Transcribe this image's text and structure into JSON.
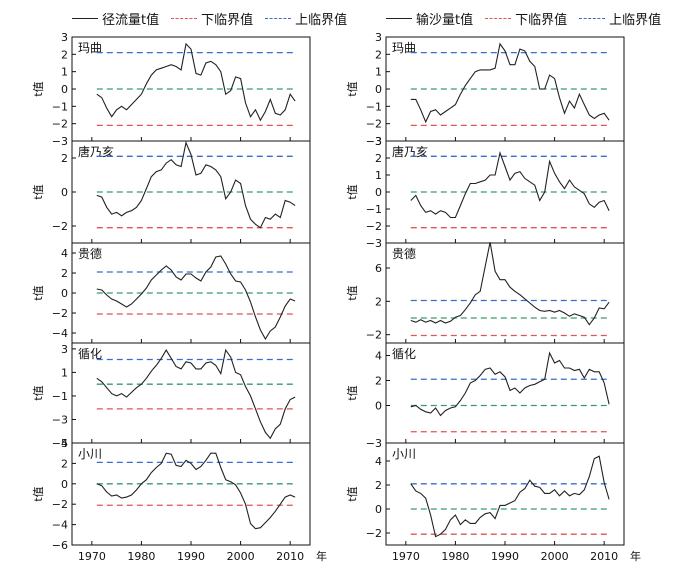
{
  "legend_left": [
    {
      "label": "径流量t值",
      "color": "#222222",
      "style": "solid"
    },
    {
      "label": "下临界值",
      "color": "#e05555",
      "style": "dashed"
    },
    {
      "label": "上临界值",
      "color": "#3a6fc9",
      "style": "dashed"
    }
  ],
  "legend_right": [
    {
      "label": "输沙量t值",
      "color": "#222222",
      "style": "solid"
    },
    {
      "label": "下临界值",
      "color": "#e05555",
      "style": "dashed"
    },
    {
      "label": "上临界值",
      "color": "#3a6fc9",
      "style": "dashed"
    }
  ],
  "ylabel": "t值",
  "xunit": "年",
  "colors": {
    "series": "#222222",
    "lower": "#e05555",
    "upper": "#3a6fc9",
    "zero": "#3a9a6a"
  },
  "chart_data": [
    {
      "type": "line",
      "column": "runoff",
      "station": "玛曲",
      "ylim": [
        -3,
        3
      ],
      "yticks": [
        -3,
        -2,
        -1,
        0,
        1,
        2,
        3
      ],
      "critical": {
        "lower": -2.1,
        "upper": 2.1
      },
      "x": [
        1971,
        1972,
        1973,
        1974,
        1975,
        1976,
        1977,
        1978,
        1979,
        1980,
        1981,
        1982,
        1983,
        1984,
        1985,
        1986,
        1987,
        1988,
        1989,
        1990,
        1991,
        1992,
        1993,
        1994,
        1995,
        1996,
        1997,
        1998,
        1999,
        2000,
        2001,
        2002,
        2003,
        2004,
        2005,
        2006,
        2007,
        2008,
        2009,
        2010,
        2011
      ],
      "values": [
        -0.3,
        -0.5,
        -1.1,
        -1.6,
        -1.2,
        -1.0,
        -1.2,
        -0.9,
        -0.6,
        -0.3,
        0.3,
        0.8,
        1.1,
        1.2,
        1.3,
        1.4,
        1.3,
        1.1,
        2.6,
        2.3,
        0.9,
        0.8,
        1.5,
        1.6,
        1.4,
        1.0,
        -0.3,
        -0.1,
        0.7,
        0.6,
        -0.8,
        -1.6,
        -1.2,
        -1.8,
        -1.3,
        -0.6,
        -1.4,
        -1.5,
        -1.2,
        -0.3,
        -0.7
      ]
    },
    {
      "type": "line",
      "column": "runoff",
      "station": "唐乃亥",
      "ylim": [
        -3,
        3
      ],
      "yticks": [
        -2,
        0,
        2
      ],
      "critical": {
        "lower": -2.1,
        "upper": 2.1
      },
      "x": [
        1971,
        1972,
        1973,
        1974,
        1975,
        1976,
        1977,
        1978,
        1979,
        1980,
        1981,
        1982,
        1983,
        1984,
        1985,
        1986,
        1987,
        1988,
        1989,
        1990,
        1991,
        1992,
        1993,
        1994,
        1995,
        1996,
        1997,
        1998,
        1999,
        2000,
        2001,
        2002,
        2003,
        2004,
        2005,
        2006,
        2007,
        2008,
        2009,
        2010,
        2011
      ],
      "values": [
        -0.2,
        -0.3,
        -0.9,
        -1.3,
        -1.2,
        -1.4,
        -1.2,
        -1.1,
        -0.9,
        -0.5,
        0.2,
        0.9,
        1.2,
        1.3,
        1.7,
        1.9,
        1.6,
        1.5,
        2.9,
        2.2,
        1.0,
        1.1,
        1.6,
        1.5,
        1.3,
        0.9,
        -0.4,
        0.0,
        0.7,
        0.5,
        -0.8,
        -1.6,
        -1.9,
        -2.1,
        -1.5,
        -1.6,
        -1.3,
        -1.5,
        -0.5,
        -0.6,
        -0.8
      ]
    },
    {
      "type": "line",
      "column": "runoff",
      "station": "贵德",
      "ylim": [
        -5,
        5
      ],
      "yticks": [
        -4,
        -2,
        0,
        2,
        4
      ],
      "critical": {
        "lower": -2.1,
        "upper": 2.1
      },
      "x": [
        1971,
        1972,
        1973,
        1974,
        1975,
        1976,
        1977,
        1978,
        1979,
        1980,
        1981,
        1982,
        1983,
        1984,
        1985,
        1986,
        1987,
        1988,
        1989,
        1990,
        1991,
        1992,
        1993,
        1994,
        1995,
        1996,
        1997,
        1998,
        1999,
        2000,
        2001,
        2002,
        2003,
        2004,
        2005,
        2006,
        2007,
        2008,
        2009,
        2010,
        2011
      ],
      "values": [
        0.4,
        0.3,
        -0.2,
        -0.6,
        -0.8,
        -1.1,
        -1.4,
        -1.1,
        -0.6,
        -0.1,
        0.5,
        1.3,
        1.8,
        2.3,
        2.7,
        2.3,
        1.6,
        1.3,
        1.9,
        1.9,
        1.5,
        1.2,
        2.1,
        2.6,
        3.6,
        3.7,
        2.9,
        1.9,
        1.2,
        1.1,
        0.3,
        -0.9,
        -2.4,
        -3.7,
        -4.6,
        -3.8,
        -3.4,
        -2.4,
        -1.3,
        -0.6,
        -0.8
      ]
    },
    {
      "type": "line",
      "column": "runoff",
      "station": "循化",
      "ylim": [
        -5,
        3.5
      ],
      "yticks": [
        -5,
        -3,
        -1,
        1,
        3
      ],
      "critical": {
        "lower": -2.1,
        "upper": 2.1
      },
      "x": [
        1971,
        1972,
        1973,
        1974,
        1975,
        1976,
        1977,
        1978,
        1979,
        1980,
        1981,
        1982,
        1983,
        1984,
        1985,
        1986,
        1987,
        1988,
        1989,
        1990,
        1991,
        1992,
        1993,
        1994,
        1995,
        1996,
        1997,
        1998,
        1999,
        2000,
        2001,
        2002,
        2003,
        2004,
        2005,
        2006,
        2007,
        2008,
        2009,
        2010,
        2011
      ],
      "values": [
        0.5,
        0.2,
        -0.3,
        -0.8,
        -1.0,
        -0.8,
        -1.1,
        -0.7,
        -0.3,
        0.0,
        0.5,
        1.1,
        1.6,
        2.2,
        2.9,
        2.2,
        1.5,
        1.3,
        1.9,
        1.8,
        1.3,
        1.3,
        1.8,
        1.9,
        1.6,
        0.9,
        2.9,
        2.3,
        1.0,
        0.8,
        -0.2,
        -1.0,
        -2.1,
        -3.2,
        -4.1,
        -4.6,
        -3.8,
        -3.4,
        -2.1,
        -1.3,
        -1.1
      ]
    },
    {
      "type": "line",
      "column": "runoff",
      "station": "小川",
      "ylim": [
        -6,
        4
      ],
      "yticks": [
        -6,
        -4,
        -2,
        0,
        2,
        4
      ],
      "critical": {
        "lower": -2.1,
        "upper": 2.1
      },
      "x": [
        1971,
        1972,
        1973,
        1974,
        1975,
        1976,
        1977,
        1978,
        1979,
        1980,
        1981,
        1982,
        1983,
        1984,
        1985,
        1986,
        1987,
        1988,
        1989,
        1990,
        1991,
        1992,
        1993,
        1994,
        1995,
        1996,
        1997,
        1998,
        1999,
        2000,
        2001,
        2002,
        2003,
        2004,
        2005,
        2006,
        2007,
        2008,
        2009,
        2010,
        2011
      ],
      "values": [
        0.0,
        -0.2,
        -0.8,
        -1.2,
        -1.1,
        -1.4,
        -1.3,
        -1.1,
        -0.6,
        0.0,
        0.4,
        1.1,
        1.6,
        2.0,
        3.0,
        2.9,
        1.8,
        1.7,
        2.3,
        2.0,
        1.4,
        1.7,
        2.3,
        3.0,
        3.0,
        1.6,
        0.4,
        0.2,
        -0.1,
        -0.9,
        -2.0,
        -3.9,
        -4.4,
        -4.3,
        -3.8,
        -3.3,
        -2.7,
        -2.0,
        -1.3,
        -1.1,
        -1.3
      ]
    },
    {
      "type": "line",
      "column": "sediment",
      "station": "玛曲",
      "ylim": [
        -3,
        3
      ],
      "yticks": [
        -3,
        -2,
        -1,
        0,
        1,
        2,
        3
      ],
      "critical": {
        "lower": -2.1,
        "upper": 2.1
      },
      "x": [
        1971,
        1972,
        1973,
        1974,
        1975,
        1976,
        1977,
        1978,
        1979,
        1980,
        1981,
        1982,
        1983,
        1984,
        1985,
        1986,
        1987,
        1988,
        1989,
        1990,
        1991,
        1992,
        1993,
        1994,
        1995,
        1996,
        1997,
        1998,
        1999,
        2000,
        2001,
        2002,
        2003,
        2004,
        2005,
        2006,
        2007,
        2008,
        2009,
        2010,
        2011
      ],
      "values": [
        -0.6,
        -0.6,
        -1.2,
        -1.9,
        -1.3,
        -1.2,
        -1.5,
        -1.3,
        -1.1,
        -0.9,
        -0.3,
        0.2,
        0.6,
        1.0,
        1.1,
        1.1,
        1.1,
        1.2,
        2.6,
        2.2,
        1.4,
        1.4,
        2.3,
        2.2,
        1.6,
        1.3,
        0.0,
        0.0,
        0.8,
        0.6,
        -0.5,
        -1.4,
        -0.7,
        -1.1,
        -0.3,
        -0.9,
        -1.5,
        -1.7,
        -1.5,
        -1.4,
        -1.8
      ]
    },
    {
      "type": "line",
      "column": "sediment",
      "station": "唐乃亥",
      "ylim": [
        -3,
        3
      ],
      "yticks": [
        -3,
        -2,
        -1,
        0,
        1,
        2,
        3
      ],
      "critical": {
        "lower": -2.1,
        "upper": 2.1
      },
      "x": [
        1971,
        1972,
        1973,
        1974,
        1975,
        1976,
        1977,
        1978,
        1979,
        1980,
        1981,
        1982,
        1983,
        1984,
        1985,
        1986,
        1987,
        1988,
        1989,
        1990,
        1991,
        1992,
        1993,
        1994,
        1995,
        1996,
        1997,
        1998,
        1999,
        2000,
        2001,
        2002,
        2003,
        2004,
        2005,
        2006,
        2007,
        2008,
        2009,
        2010,
        2011
      ],
      "values": [
        -0.5,
        -0.2,
        -0.8,
        -1.2,
        -1.1,
        -1.3,
        -1.1,
        -1.2,
        -1.5,
        -1.5,
        -0.8,
        -0.1,
        0.5,
        0.5,
        0.6,
        0.7,
        1.0,
        1.0,
        2.3,
        1.5,
        0.7,
        1.1,
        1.2,
        0.8,
        0.6,
        0.4,
        -0.5,
        0.0,
        1.8,
        1.1,
        0.6,
        0.2,
        0.7,
        0.3,
        0.1,
        -0.1,
        -0.7,
        -0.9,
        -0.6,
        -0.5,
        -1.1
      ]
    },
    {
      "type": "line",
      "column": "sediment",
      "station": "贵德",
      "ylim": [
        -3,
        9
      ],
      "yticks": [
        -2,
        2,
        6
      ],
      "critical": {
        "lower": -2.1,
        "upper": 2.1
      },
      "x": [
        1971,
        1972,
        1973,
        1974,
        1975,
        1976,
        1977,
        1978,
        1979,
        1980,
        1981,
        1982,
        1983,
        1984,
        1985,
        1986,
        1987,
        1988,
        1989,
        1990,
        1991,
        1992,
        1993,
        1994,
        1995,
        1996,
        1997,
        1998,
        1999,
        2000,
        2001,
        2002,
        2003,
        2004,
        2005,
        2006,
        2007,
        2008,
        2009,
        2010,
        2011
      ],
      "values": [
        -0.3,
        -0.5,
        -0.2,
        -0.5,
        -0.3,
        -0.6,
        -0.3,
        -0.6,
        -0.4,
        0.1,
        0.3,
        1.0,
        1.8,
        2.8,
        3.2,
        6.2,
        9.1,
        5.6,
        4.6,
        4.6,
        3.7,
        3.2,
        2.8,
        2.3,
        1.8,
        1.3,
        0.9,
        0.8,
        0.9,
        0.7,
        0.9,
        0.6,
        0.2,
        0.5,
        0.3,
        0.1,
        -0.8,
        0.0,
        1.2,
        1.1,
        1.9
      ]
    },
    {
      "type": "line",
      "column": "sediment",
      "station": "循化",
      "ylim": [
        -3,
        5
      ],
      "yticks": [
        -3,
        0,
        2,
        4
      ],
      "critical": {
        "lower": -2.1,
        "upper": 2.1
      },
      "x": [
        1971,
        1972,
        1973,
        1974,
        1975,
        1976,
        1977,
        1978,
        1979,
        1980,
        1981,
        1982,
        1983,
        1984,
        1985,
        1986,
        1987,
        1988,
        1989,
        1990,
        1991,
        1992,
        1993,
        1994,
        1995,
        1996,
        1997,
        1998,
        1999,
        2000,
        2001,
        2002,
        2003,
        2004,
        2005,
        2006,
        2007,
        2008,
        2009,
        2010,
        2011
      ],
      "values": [
        -0.1,
        0.0,
        -0.3,
        -0.5,
        -0.6,
        -0.2,
        -0.8,
        -0.4,
        -0.2,
        -0.1,
        0.4,
        1.0,
        1.8,
        2.0,
        2.4,
        2.9,
        3.0,
        2.5,
        2.7,
        2.3,
        1.2,
        1.4,
        1.0,
        1.4,
        1.6,
        1.7,
        1.9,
        2.1,
        4.2,
        3.4,
        3.6,
        3.0,
        3.0,
        2.8,
        2.9,
        2.2,
        2.9,
        2.7,
        2.7,
        1.8,
        0.1
      ]
    },
    {
      "type": "line",
      "column": "sediment",
      "station": "小川",
      "ylim": [
        -3,
        5.5
      ],
      "yticks": [
        -2,
        0,
        2,
        4
      ],
      "critical": {
        "lower": -2.1,
        "upper": 2.1
      },
      "x": [
        1971,
        1972,
        1973,
        1974,
        1975,
        1976,
        1977,
        1978,
        1979,
        1980,
        1981,
        1982,
        1983,
        1984,
        1985,
        1986,
        1987,
        1988,
        1989,
        1990,
        1991,
        1992,
        1993,
        1994,
        1995,
        1996,
        1997,
        1998,
        1999,
        2000,
        2001,
        2002,
        2003,
        2004,
        2005,
        2006,
        2007,
        2008,
        2009,
        2010,
        2011
      ],
      "values": [
        2.1,
        1.5,
        1.3,
        0.9,
        -0.5,
        -2.3,
        -2.1,
        -1.7,
        -0.9,
        -0.5,
        -1.3,
        -0.9,
        -1.2,
        -1.2,
        -0.7,
        -0.4,
        -0.3,
        -0.8,
        0.3,
        0.3,
        0.5,
        0.7,
        1.4,
        1.7,
        2.4,
        1.9,
        1.8,
        1.3,
        1.3,
        1.6,
        1.1,
        1.5,
        1.1,
        1.3,
        1.2,
        1.6,
        2.7,
        4.2,
        4.4,
        2.2,
        0.8
      ]
    }
  ],
  "x_ticks": [
    1970,
    1980,
    1990,
    2000,
    2010
  ]
}
